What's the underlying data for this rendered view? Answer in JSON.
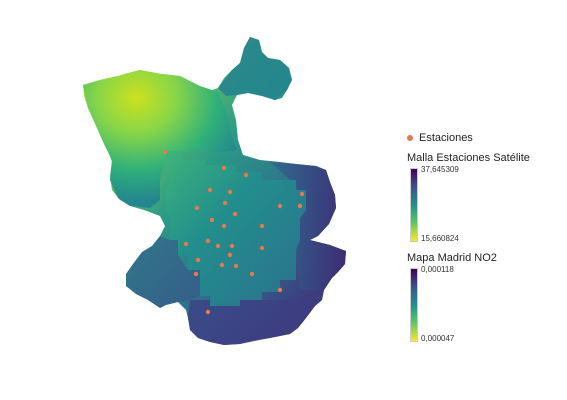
{
  "legend": {
    "stations_label": "Estaciones",
    "stations_color": "#e8794a",
    "grid_title": "Malla Estaciones Satélite",
    "grid_max": "37,645309",
    "grid_min": "15,660824",
    "map_title": "Mapa Madrid NO2",
    "map_max": "0,000118",
    "map_min": "0,000047"
  },
  "colors": {
    "viridis": [
      "#440154",
      "#3b528b",
      "#21908c",
      "#5dc863",
      "#fde725"
    ]
  },
  "stations_count": 27
}
